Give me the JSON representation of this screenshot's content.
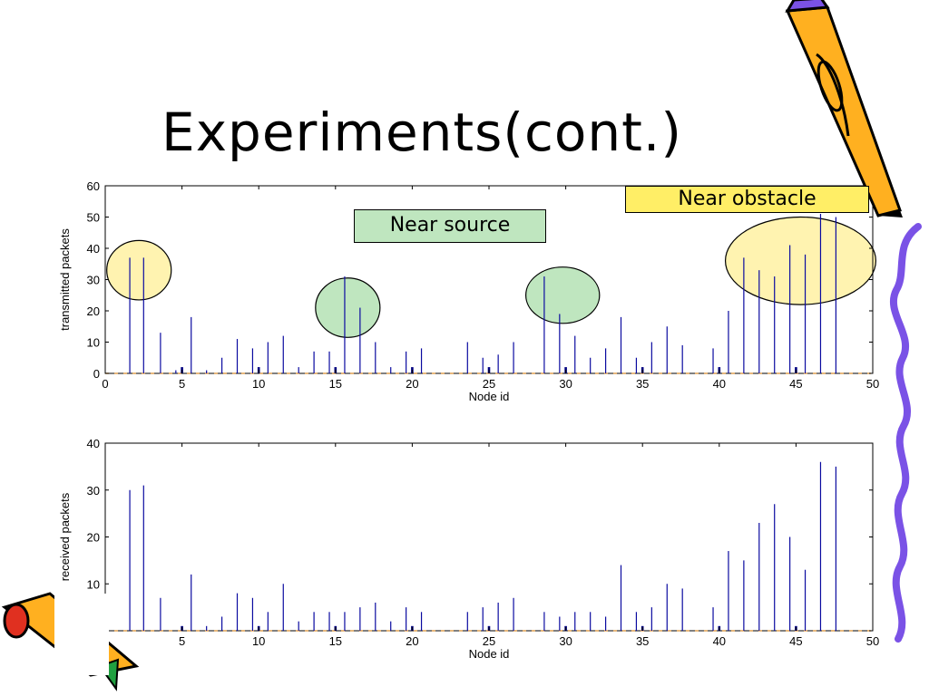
{
  "slide": {
    "title": "Experiments(cont.)",
    "callouts": {
      "near_source": "Near source",
      "near_obstacle": "Near obstacle"
    }
  },
  "colors": {
    "bar_blue": "#0a0aa0",
    "bar_dark": "#000080",
    "highlight_source": "#bfe6bf",
    "highlight_obstacle": "#fff3b0",
    "callout_source_bg": "#bfe6bf",
    "callout_obstacle_bg": "#ffee66",
    "squiggle": "#7a52e6",
    "baseline_dash": "#e0a050"
  },
  "icons": [
    "pencil-icon",
    "pencil-icon-small"
  ],
  "chart_data": [
    {
      "type": "bar",
      "xlabel": "Node id",
      "ylabel": "transmitted packets",
      "xlim": [
        0,
        50
      ],
      "ylim": [
        0,
        60
      ],
      "xticks": [
        0,
        5,
        10,
        15,
        20,
        25,
        30,
        35,
        40,
        45,
        50
      ],
      "yticks": [
        0,
        10,
        20,
        30,
        40,
        50,
        60
      ],
      "x": [
        1.6,
        2.5,
        3.6,
        4.6,
        5.0,
        5.6,
        6.6,
        7.6,
        8.6,
        9.6,
        10.0,
        10.6,
        11.6,
        12.6,
        13.6,
        14.6,
        15.0,
        15.6,
        16.6,
        17.6,
        18.6,
        19.6,
        20.0,
        20.6,
        23.6,
        24.6,
        25.0,
        25.6,
        26.6,
        28.6,
        29.6,
        30.0,
        30.6,
        31.6,
        32.6,
        33.6,
        34.6,
        35.0,
        35.6,
        36.6,
        37.6,
        39.6,
        40.0,
        40.6,
        41.6,
        42.6,
        43.6,
        44.6,
        45.0,
        45.6,
        46.6,
        47.6
      ],
      "values": [
        37,
        37,
        13,
        1,
        2,
        18,
        1,
        5,
        11,
        8,
        2,
        10,
        12,
        2,
        7,
        7,
        2,
        31,
        21,
        10,
        2,
        7,
        2,
        8,
        10,
        5,
        2,
        6,
        10,
        31,
        19,
        2,
        12,
        5,
        8,
        18,
        5,
        2,
        10,
        15,
        9,
        8,
        2,
        20,
        37,
        33,
        31,
        41,
        2,
        38,
        51,
        50
      ],
      "highlights": [
        {
          "label": "",
          "x": 2.2,
          "y": 33,
          "rx": 2.1,
          "ry": 9.5,
          "color": "#fff3b0"
        },
        {
          "label": "",
          "x": 15.8,
          "y": 21,
          "rx": 2.1,
          "ry": 9.5,
          "color": "#bfe6bf"
        },
        {
          "label": "",
          "x": 29.8,
          "y": 25,
          "rx": 2.4,
          "ry": 9.0,
          "color": "#bfe6bf"
        },
        {
          "label": "",
          "x": 45.3,
          "y": 36,
          "rx": 4.9,
          "ry": 14.0,
          "color": "#fff3b0"
        }
      ]
    },
    {
      "type": "bar",
      "xlabel": "Node id",
      "ylabel": "received packets",
      "xlim": [
        0,
        50
      ],
      "ylim": [
        0,
        40
      ],
      "xticks": [
        0,
        5,
        10,
        15,
        20,
        25,
        30,
        35,
        40,
        45,
        50
      ],
      "yticks": [
        0,
        10,
        20,
        30,
        40
      ],
      "x": [
        1.6,
        2.5,
        3.6,
        5.0,
        5.6,
        6.6,
        7.6,
        8.6,
        9.6,
        10.0,
        10.6,
        11.6,
        12.6,
        13.6,
        14.6,
        15.0,
        15.6,
        16.6,
        17.6,
        18.6,
        19.6,
        20.0,
        20.6,
        23.6,
        24.6,
        25.0,
        25.6,
        26.6,
        28.6,
        29.6,
        30.0,
        30.6,
        31.6,
        32.6,
        33.6,
        34.6,
        35.0,
        35.6,
        36.6,
        37.6,
        39.6,
        40.0,
        40.6,
        41.6,
        42.6,
        43.6,
        44.6,
        45.0,
        45.6,
        46.6,
        47.6
      ],
      "values": [
        30,
        31,
        7,
        1,
        12,
        1,
        3,
        8,
        7,
        1,
        4,
        10,
        2,
        4,
        4,
        1,
        4,
        5,
        6,
        2,
        5,
        1,
        4,
        4,
        5,
        1,
        6,
        7,
        4,
        3,
        1,
        4,
        4,
        3,
        14,
        4,
        1,
        5,
        10,
        9,
        5,
        1,
        17,
        15,
        23,
        27,
        20,
        1,
        13,
        36,
        35
      ]
    }
  ]
}
